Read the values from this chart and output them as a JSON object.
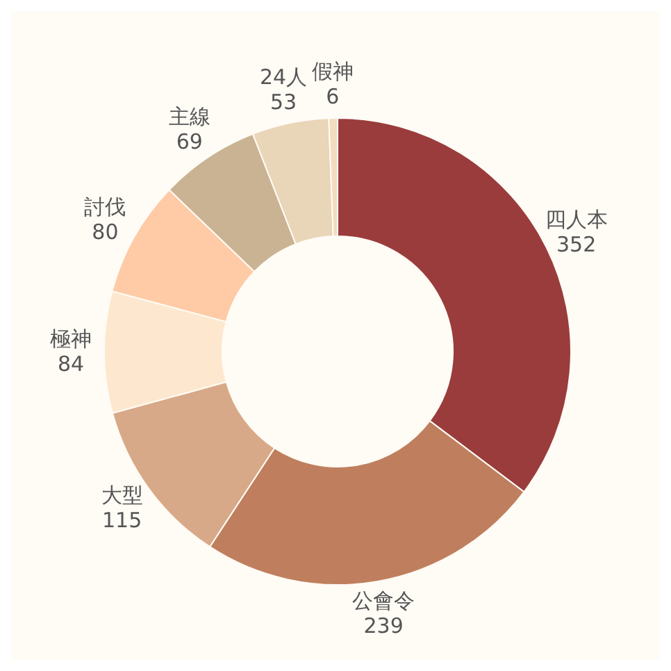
{
  "chart_data": {
    "type": "donut",
    "categories": [
      "四人本",
      "公會令",
      "大型",
      "極神",
      "討伐",
      "主線",
      "24人",
      "假神"
    ],
    "values": [
      352,
      239,
      115,
      84,
      80,
      69,
      53,
      6
    ],
    "colors": [
      "#9a3c3c",
      "#bf7f5e",
      "#d8a988",
      "#fde8cf",
      "#fecba6",
      "#c9b393",
      "#e9d5b7",
      "#f3dcc0"
    ],
    "data_labels": true
  }
}
